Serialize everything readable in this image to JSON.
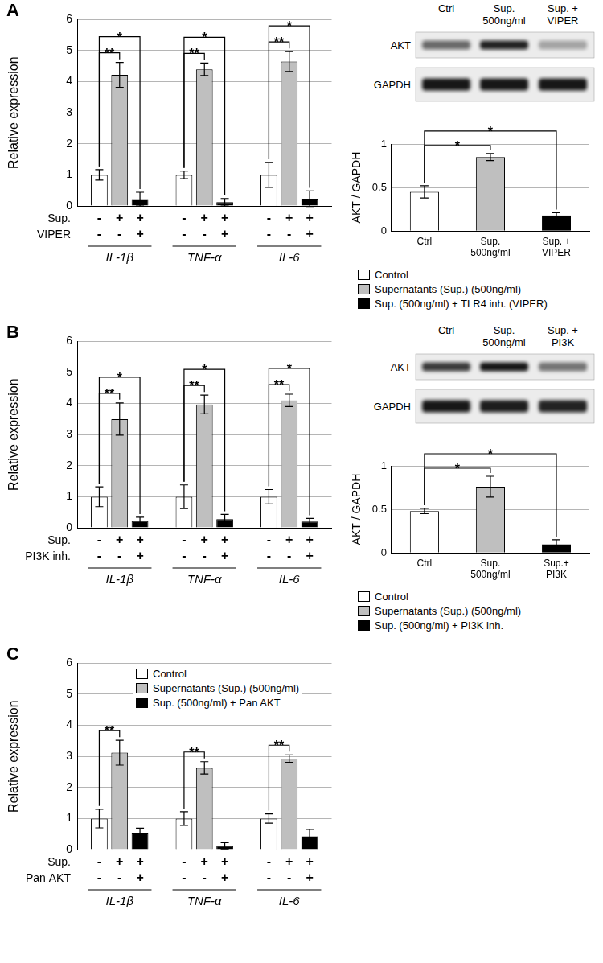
{
  "panel_labels": [
    "A",
    "B",
    "C"
  ],
  "blots": [
    {
      "columns": [
        [
          "Ctrl"
        ],
        [
          "Sup.",
          "500ng/ml"
        ],
        [
          "Sup. +",
          "VIPER"
        ]
      ],
      "rows": [
        "AKT",
        "GAPDH"
      ]
    },
    {
      "columns": [
        [
          "Ctrl"
        ],
        [
          "Sup.",
          "500ng/ml"
        ],
        [
          "Sup. +",
          "PI3K"
        ]
      ],
      "rows": [
        "AKT",
        "GAPDH"
      ]
    }
  ],
  "chart_data": [
    {
      "type": "bar",
      "categories": [
        "IL-1β",
        "TNF-α",
        "IL-6"
      ],
      "y_label": "Relative expression",
      "ylim": [
        0,
        6
      ],
      "yticks": [
        0,
        1,
        2,
        3,
        4,
        5,
        6
      ],
      "grid": true,
      "legend": "bottom right",
      "series": [
        {
          "name": "Control",
          "color": "#ffffff",
          "values": [
            1.0,
            1.0,
            1.0
          ],
          "errors": [
            0.17,
            0.12,
            0.4
          ]
        },
        {
          "name": "Supernatants (Sup.) (500ng/ml)",
          "color": "#bfbfbf",
          "values": [
            4.22,
            4.4,
            4.65
          ],
          "errors": [
            0.4,
            0.2,
            0.32
          ]
        },
        {
          "name": "Sup. (500ng/ml) + TLR4 inh. (VIPER)",
          "color": "#000000",
          "values": [
            0.22,
            0.12,
            0.23
          ],
          "errors": [
            0.22,
            0.12,
            0.25
          ]
        }
      ],
      "condition_rows": [
        {
          "label": "Sup.",
          "marks": [
            "-",
            "+",
            "+"
          ]
        },
        {
          "label": "VIPER",
          "marks": [
            "-",
            "-",
            "+"
          ]
        }
      ],
      "annotations": [
        {
          "category": "IL-1β",
          "bars": [
            0,
            1
          ],
          "text": "**"
        },
        {
          "category": "IL-1β",
          "bars": [
            0,
            2
          ],
          "text": "*"
        },
        {
          "category": "TNF-α",
          "bars": [
            0,
            1
          ],
          "text": "**"
        },
        {
          "category": "TNF-α",
          "bars": [
            0,
            2
          ],
          "text": "*"
        },
        {
          "category": "IL-6",
          "bars": [
            0,
            1
          ],
          "text": "**"
        },
        {
          "category": "IL-6",
          "bars": [
            0,
            2
          ],
          "text": "*"
        }
      ]
    },
    {
      "type": "bar",
      "categories": [
        [
          "Ctrl"
        ],
        [
          "Sup.",
          "500ng/ml"
        ],
        [
          "Sup. +",
          "VIPER"
        ]
      ],
      "y_label": "AKT / GAPDH",
      "values": [
        0.45,
        0.85,
        0.18
      ],
      "errors": [
        0.07,
        0.04,
        0.03
      ],
      "colors": [
        "#ffffff",
        "#bfbfbf",
        "#000000"
      ],
      "ylim": [
        0,
        1
      ],
      "yticks": [
        0,
        0.5,
        1
      ],
      "grid": true,
      "annotations": [
        {
          "bars": [
            0,
            1
          ],
          "text": "*"
        },
        {
          "bars": [
            0,
            2
          ],
          "text": "*"
        }
      ]
    },
    {
      "type": "bar",
      "categories": [
        "IL-1β",
        "TNF-α",
        "IL-6"
      ],
      "y_label": "Relative expression",
      "ylim": [
        0,
        6
      ],
      "yticks": [
        0,
        1,
        2,
        3,
        4,
        5,
        6
      ],
      "grid": true,
      "legend": "bottom right",
      "series": [
        {
          "name": "Control",
          "color": "#ffffff",
          "values": [
            1.0,
            1.0,
            1.0
          ],
          "errors": [
            0.32,
            0.38,
            0.23
          ]
        },
        {
          "name": "Supernatants (Sup.) (500ng/ml)",
          "color": "#bfbfbf",
          "values": [
            3.5,
            3.97,
            4.1
          ],
          "errors": [
            0.52,
            0.3,
            0.2
          ]
        },
        {
          "name": "Sup. (500ng/ml) + PI3K inh.",
          "color": "#000000",
          "values": [
            0.22,
            0.28,
            0.2
          ],
          "errors": [
            0.12,
            0.15,
            0.1
          ]
        }
      ],
      "condition_rows": [
        {
          "label": "Sup.",
          "marks": [
            "-",
            "+",
            "+"
          ]
        },
        {
          "label": "PI3K inh.",
          "marks": [
            "-",
            "-",
            "+"
          ]
        }
      ],
      "annotations": [
        {
          "category": "IL-1β",
          "bars": [
            0,
            1
          ],
          "text": "**"
        },
        {
          "category": "IL-1β",
          "bars": [
            0,
            2
          ],
          "text": "*"
        },
        {
          "category": "TNF-α",
          "bars": [
            0,
            1
          ],
          "text": "**"
        },
        {
          "category": "TNF-α",
          "bars": [
            0,
            2
          ],
          "text": "*"
        },
        {
          "category": "IL-6",
          "bars": [
            0,
            1
          ],
          "text": "**"
        },
        {
          "category": "IL-6",
          "bars": [
            0,
            2
          ],
          "text": "*"
        }
      ]
    },
    {
      "type": "bar",
      "categories": [
        [
          "Ctrl"
        ],
        [
          "Sup.",
          "500ng/ml"
        ],
        [
          "Sup.+",
          "PI3K"
        ]
      ],
      "y_label": "AKT / GAPDH",
      "values": [
        0.48,
        0.76,
        0.1
      ],
      "errors": [
        0.03,
        0.12,
        0.05
      ],
      "colors": [
        "#ffffff",
        "#bfbfbf",
        "#000000"
      ],
      "ylim": [
        0,
        1
      ],
      "yticks": [
        0,
        0.5,
        1
      ],
      "grid": true,
      "annotations": [
        {
          "bars": [
            0,
            1
          ],
          "text": "*"
        },
        {
          "bars": [
            0,
            2
          ],
          "text": "*"
        }
      ]
    },
    {
      "type": "bar",
      "categories": [
        "IL-1β",
        "TNF-α",
        "IL-6"
      ],
      "y_label": "Relative expression",
      "ylim": [
        0,
        6
      ],
      "yticks": [
        0,
        1,
        2,
        3,
        4,
        5,
        6
      ],
      "grid": true,
      "legend": "top",
      "series": [
        {
          "name": "Control",
          "color": "#ffffff",
          "values": [
            1.0,
            1.0,
            1.0
          ],
          "errors": [
            0.3,
            0.22,
            0.15
          ]
        },
        {
          "name": "Supernatants (Sup.) (500ng/ml)",
          "color": "#bfbfbf",
          "values": [
            3.12,
            2.63,
            2.93
          ],
          "errors": [
            0.4,
            0.2,
            0.12
          ]
        },
        {
          "name": "Sup. (500ng/ml) + Pan AKT",
          "color": "#000000",
          "values": [
            0.52,
            0.12,
            0.43
          ],
          "errors": [
            0.17,
            0.1,
            0.22
          ]
        }
      ],
      "condition_rows": [
        {
          "label": "Sup.",
          "marks": [
            "-",
            "+",
            "+"
          ]
        },
        {
          "label": "Pan AKT",
          "marks": [
            "-",
            "-",
            "+"
          ]
        }
      ],
      "annotations": [
        {
          "category": "IL-1β",
          "bars": [
            0,
            1
          ],
          "text": "**"
        },
        {
          "category": "TNF-α",
          "bars": [
            0,
            1
          ],
          "text": "**"
        },
        {
          "category": "IL-6",
          "bars": [
            0,
            1
          ],
          "text": "**"
        }
      ]
    }
  ]
}
